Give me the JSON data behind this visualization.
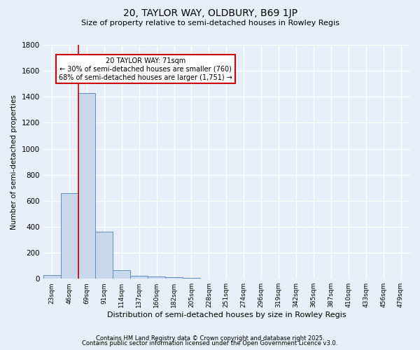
{
  "title": "20, TAYLOR WAY, OLDBURY, B69 1JP",
  "subtitle": "Size of property relative to semi-detached houses in Rowley Regis",
  "xlabel": "Distribution of semi-detached houses by size in Rowley Regis",
  "ylabel": "Number of semi-detached properties",
  "footnote1": "Contains HM Land Registry data © Crown copyright and database right 2025.",
  "footnote2": "Contains public sector information licensed under the Open Government Licence v3.0.",
  "bar_labels": [
    "23sqm",
    "46sqm",
    "69sqm",
    "91sqm",
    "114sqm",
    "137sqm",
    "160sqm",
    "182sqm",
    "205sqm",
    "228sqm",
    "251sqm",
    "274sqm",
    "296sqm",
    "319sqm",
    "342sqm",
    "365sqm",
    "387sqm",
    "410sqm",
    "433sqm",
    "456sqm",
    "479sqm"
  ],
  "bar_values": [
    30,
    660,
    1430,
    360,
    65,
    25,
    15,
    10,
    5,
    2,
    1,
    0,
    0,
    0,
    0,
    0,
    0,
    0,
    0,
    0,
    0
  ],
  "bar_color": "#c8d8ec",
  "bar_edge_color": "#6090c0",
  "background_color": "#e8eef8",
  "grid_color": "#ffffff",
  "red_line_x": 2.0,
  "annotation_title": "20 TAYLOR WAY: 71sqm",
  "annotation_line1": "← 30% of semi-detached houses are smaller (760)",
  "annotation_line2": "68% of semi-detached houses are larger (1,751) →",
  "annotation_box_color": "#ffffff",
  "annotation_edge_color": "#cc0000",
  "ylim": [
    0,
    1800
  ],
  "yticks": [
    0,
    200,
    400,
    600,
    800,
    1000,
    1200,
    1400,
    1600,
    1800
  ]
}
